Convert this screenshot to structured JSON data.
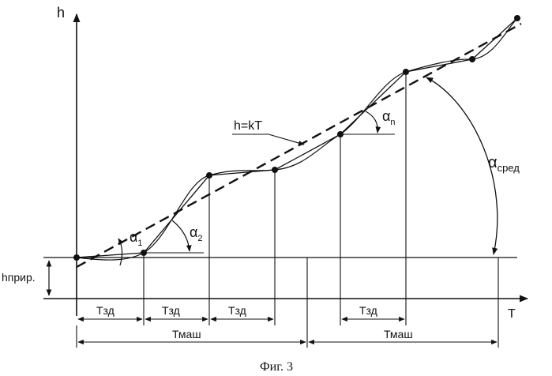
{
  "axes": {
    "y_label": "h",
    "x_label": "T"
  },
  "labels": {
    "line_eq": "h=kT",
    "h_base": "hприр.",
    "alpha": "α",
    "alpha_1_sub": "1",
    "alpha_2_sub": "2",
    "alpha_n_sub": "n",
    "alpha_avg_sub": "сред",
    "t_zd": "Тзд",
    "t_mash": "Тмаш"
  },
  "caption": "Фиг. 3"
}
